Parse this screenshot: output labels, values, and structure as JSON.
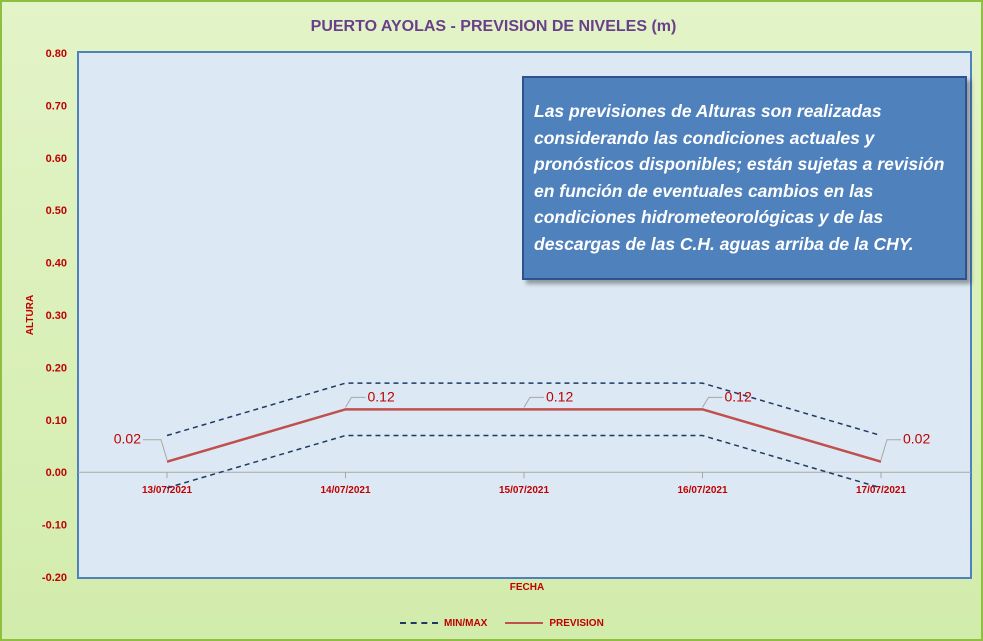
{
  "chart_data": {
    "type": "line",
    "title": "PUERTO AYOLAS - PREVISION DE NIVELES (m)",
    "xlabel": "FECHA",
    "ylabel": "ALTURA",
    "categories": [
      "13/07/2021",
      "14/07/2021",
      "15/07/2021",
      "16/07/2021",
      "17/07/2021"
    ],
    "series": [
      {
        "name": "MIN/MAX",
        "values": [
          0.07,
          0.17,
          0.17,
          0.17,
          0.07
        ],
        "style": "dashed",
        "color": "#1f3864"
      },
      {
        "name": "MIN/MAX",
        "values": [
          -0.03,
          0.07,
          0.07,
          0.07,
          -0.03
        ],
        "style": "dashed",
        "color": "#1f3864"
      },
      {
        "name": "PREVISION",
        "values": [
          0.02,
          0.12,
          0.12,
          0.12,
          0.02
        ],
        "style": "solid",
        "color": "#c0504d"
      }
    ],
    "data_labels": [
      "0.02",
      "0.12",
      "0.12",
      "0.12",
      "0.02"
    ],
    "ylim": [
      -0.2,
      0.8
    ],
    "yticks": [
      "0.80",
      "0.70",
      "0.60",
      "0.50",
      "0.40",
      "0.30",
      "0.20",
      "0.10",
      "0.00",
      "-0.10",
      "-0.20"
    ],
    "grid": false,
    "legend_position": "bottom"
  },
  "annotation": "Las previsiones de Alturas son realizadas considerando las condiciones actuales y pronósticos disponibles;  están sujetas a revisión en función de eventuales cambios en las condiciones hidrometeorológicas y de las descargas de las C.H. aguas arriba de la CHY.",
  "legend": {
    "minmax": "MIN/MAX",
    "prevision": "PREVISION"
  },
  "colors": {
    "label_red": "#c00000",
    "plot_bg": "#dce9f4",
    "plot_border": "#4f81bd",
    "frame_border": "#8fbf3f"
  }
}
